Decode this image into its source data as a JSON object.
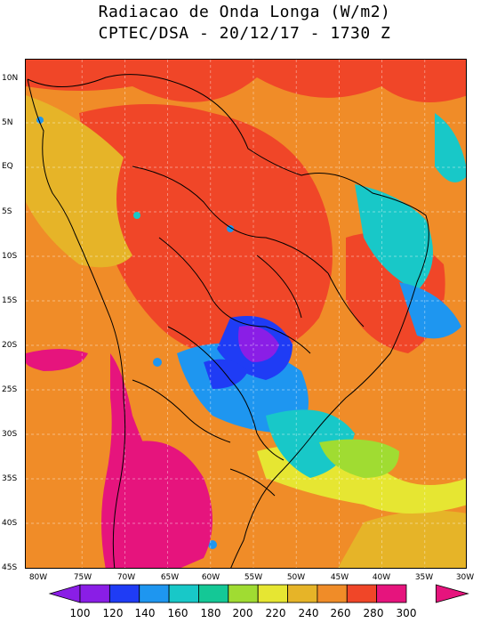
{
  "title": {
    "line1": "Radiacao de Onda Longa (W/m2)",
    "line2": "CPTEC/DSA - 20/12/17 - 1730 Z"
  },
  "map": {
    "lat_ticks": [
      "10N",
      "5N",
      "EQ",
      "5S",
      "10S",
      "15S",
      "20S",
      "25S",
      "30S",
      "35S",
      "40S",
      "45S"
    ],
    "lon_ticks": [
      "80W",
      "75W",
      "70W",
      "65W",
      "60W",
      "55W",
      "50W",
      "45W",
      "40W",
      "35W",
      "30W"
    ]
  },
  "colorbar": {
    "labels": [
      "100",
      "120",
      "140",
      "160",
      "180",
      "200",
      "220",
      "240",
      "260",
      "280",
      "300"
    ],
    "colors": [
      "#8a1ee6",
      "#1f3cf5",
      "#1e96f0",
      "#18c8c8",
      "#14c896",
      "#a0dc32",
      "#e6e632",
      "#e6b428",
      "#f08c28",
      "#f04628",
      "#e6147d"
    ]
  }
}
